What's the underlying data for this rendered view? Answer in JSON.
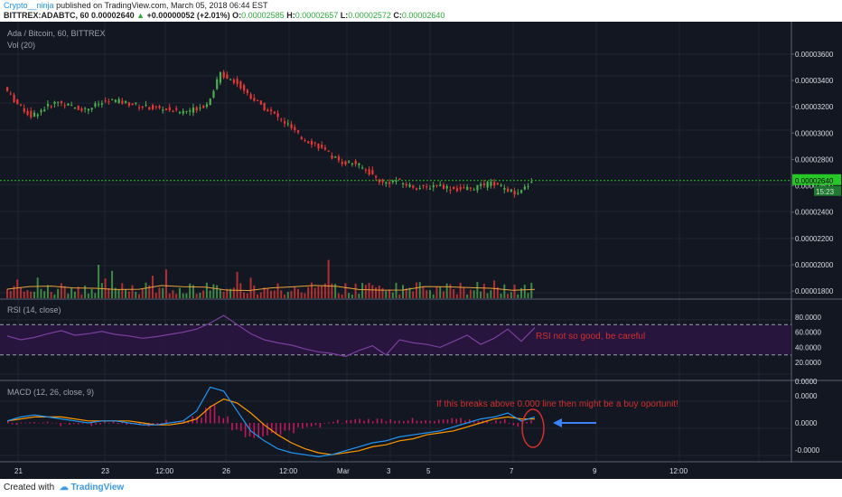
{
  "header": {
    "author": "Crypto__ninja",
    "published": "published on TradingView.com, March 05, 2018 06:44 EST",
    "symbol": "BITTREX:ADABTC, 60",
    "last": "0.00002640",
    "change_arrow": "▲",
    "change": "+0.00000052 (+2.01%)",
    "o_label": "O:",
    "o": "0.00002585",
    "h_label": "H:",
    "h": "0.00002657",
    "l_label": "L:",
    "l": "0.00002572",
    "c_label": "C:",
    "c": "0.00002640"
  },
  "footer": {
    "created_with": "Created with",
    "brand": "TradingView"
  },
  "colors": {
    "bg": "#131722",
    "up": "#4caf50",
    "down": "#e53935",
    "rsi": "#7b3fa0",
    "macd": "#2196f3",
    "signal": "#ff9800",
    "annotation": "#d22f2f",
    "price_line": "#26c726"
  },
  "chart_data": [
    {
      "type": "candlestick",
      "title": "Ada / Bitcoin, 60, BITTREX",
      "indicator": "Vol (20)",
      "x_ticks": [
        "21",
        "23",
        "12:00",
        "26",
        "12:00",
        "Mar",
        "3",
        "5",
        "7",
        "9",
        "12:00"
      ],
      "y_ticks": [
        "0.00003600",
        "0.00003400",
        "0.00003200",
        "0.00003000",
        "0.00002800",
        "0.00002600",
        "0.00002400",
        "0.00002200",
        "0.00002000",
        "0.00001800"
      ],
      "ylim": [
        1.76e-05,
        3.75e-05
      ],
      "last_price": "0.00002640",
      "last_timer": "15:23",
      "close_series": [
        3.35e-05,
        3.22e-05,
        3.13e-05,
        3.19e-05,
        3.24e-05,
        3.2e-05,
        3.18e-05,
        3.22e-05,
        3.25e-05,
        3.23e-05,
        3.21e-05,
        3.19e-05,
        3.18e-05,
        3.16e-05,
        3.18e-05,
        3.22e-05,
        3.45e-05,
        3.4e-05,
        3.3e-05,
        3.21e-05,
        3.14e-05,
        3.06e-05,
        2.96e-05,
        2.92e-05,
        2.84e-05,
        2.78e-05,
        2.77e-05,
        2.7e-05,
        2.62e-05,
        2.64e-05,
        2.6e-05,
        2.58e-05,
        2.61e-05,
        2.58e-05,
        2.57e-05,
        2.59e-05,
        2.62e-05,
        2.58e-05,
        2.53e-05,
        2.64e-05
      ]
    },
    {
      "type": "line",
      "title": "RSI (14, close)",
      "y_ticks": [
        "80.0000",
        "60.0000",
        "40.0000",
        "20.0000",
        "0.0000"
      ],
      "ylim": [
        0,
        100
      ],
      "bands": [
        30,
        70
      ],
      "values": [
        55,
        50,
        53,
        58,
        62,
        56,
        58,
        61,
        57,
        55,
        52,
        54,
        57,
        60,
        64,
        72,
        82,
        70,
        58,
        50,
        46,
        43,
        38,
        34,
        32,
        28,
        36,
        42,
        30,
        50,
        46,
        44,
        40,
        48,
        56,
        44,
        52,
        64,
        48,
        66
      ],
      "annotation": "RSI not so good, be careful"
    },
    {
      "type": "histogram",
      "title": "MACD (12, 26, close, 9)",
      "y_ticks": [
        "0.0000",
        "0.0000",
        "-0.0000"
      ],
      "macd_values": [
        0.1,
        0.3,
        0.4,
        0.3,
        0.2,
        0.1,
        0.0,
        0.1,
        0.1,
        0.0,
        -0.1,
        -0.1,
        0.0,
        0.1,
        0.6,
        1.8,
        1.6,
        0.6,
        -0.4,
        -0.9,
        -1.3,
        -1.5,
        -1.6,
        -1.7,
        -1.6,
        -1.4,
        -1.2,
        -1.0,
        -0.9,
        -0.7,
        -0.6,
        -0.5,
        -0.4,
        -0.2,
        0.0,
        0.2,
        0.3,
        0.5,
        0.1,
        0.3
      ],
      "signal_values": [
        0.1,
        0.2,
        0.3,
        0.3,
        0.3,
        0.2,
        0.1,
        0.1,
        0.1,
        0.1,
        0.0,
        -0.1,
        -0.1,
        0.0,
        0.2,
        0.8,
        1.2,
        1.0,
        0.5,
        -0.1,
        -0.6,
        -1.0,
        -1.3,
        -1.5,
        -1.6,
        -1.5,
        -1.4,
        -1.2,
        -1.1,
        -0.9,
        -0.8,
        -0.6,
        -0.5,
        -0.4,
        -0.2,
        0.0,
        0.2,
        0.3,
        0.2,
        0.2
      ],
      "annotation": "If this breaks above 0.000 line then might be a buy oportunit!"
    }
  ]
}
